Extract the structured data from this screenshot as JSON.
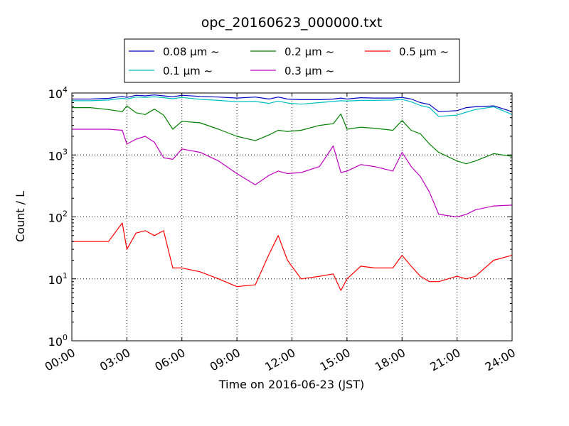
{
  "chart_data": {
    "type": "line",
    "title": "opc_20160623_000000.txt",
    "xlabel": "Time on 2016-06-23 (JST)",
    "ylabel": "Count / L",
    "yscale": "log",
    "xlim": [
      "00:00",
      "24:00"
    ],
    "ylim": [
      1,
      10000
    ],
    "grid": true,
    "legend_position": "top",
    "x_ticks": [
      "00:00",
      "03:00",
      "06:00",
      "09:00",
      "12:00",
      "15:00",
      "18:00",
      "21:00",
      "24:00"
    ],
    "y_ticks": [
      {
        "value": 1,
        "base": "10",
        "exp": "0"
      },
      {
        "value": 10,
        "base": "10",
        "exp": "1"
      },
      {
        "value": 100,
        "base": "10",
        "exp": "2"
      },
      {
        "value": 1000,
        "base": "10",
        "exp": "3"
      },
      {
        "value": 10000,
        "base": "10",
        "exp": "4"
      }
    ],
    "x": [
      "00:00",
      "01:00",
      "02:00",
      "02:45",
      "03:00",
      "03:30",
      "04:00",
      "04:30",
      "05:00",
      "05:30",
      "06:00",
      "07:00",
      "08:00",
      "09:00",
      "10:00",
      "10:45",
      "11:15",
      "11:45",
      "12:30",
      "13:30",
      "14:15",
      "14:40",
      "15:00",
      "15:45",
      "16:30",
      "17:30",
      "18:00",
      "18:30",
      "19:00",
      "19:30",
      "20:00",
      "21:00",
      "21:30",
      "22:00",
      "23:00",
      "24:00"
    ],
    "series": [
      {
        "name": "0.08 µm ~",
        "color": "#0000bf",
        "values": [
          8000,
          8000,
          8200,
          8800,
          8500,
          9200,
          9000,
          9300,
          9000,
          8700,
          9200,
          8800,
          8600,
          8300,
          8600,
          8000,
          8600,
          8000,
          7800,
          7800,
          8000,
          8300,
          8000,
          8400,
          8300,
          8300,
          8500,
          8000,
          7000,
          6500,
          5000,
          5200,
          5800,
          6000,
          6200,
          5000
        ]
      },
      {
        "name": "0.1 µm ~",
        "color": "#00bfbf",
        "values": [
          7500,
          7500,
          7700,
          8200,
          8000,
          8600,
          8500,
          8700,
          8400,
          8100,
          8500,
          7900,
          7600,
          7200,
          7300,
          6800,
          7400,
          6900,
          6600,
          7000,
          7300,
          7500,
          7400,
          7600,
          7600,
          7700,
          7900,
          7200,
          6300,
          5800,
          4200,
          4400,
          4900,
          5400,
          6000,
          4500
        ]
      },
      {
        "name": "0.2 µm ~",
        "color": "#008000",
        "values": [
          5800,
          5800,
          5400,
          5000,
          6200,
          4800,
          4500,
          5500,
          4400,
          2600,
          3500,
          3300,
          2600,
          2000,
          1700,
          2100,
          2500,
          2400,
          2500,
          3000,
          3200,
          4600,
          2600,
          2800,
          2700,
          2500,
          3600,
          2500,
          2200,
          1500,
          1100,
          800,
          720,
          800,
          1050,
          950
        ]
      },
      {
        "name": "0.3 µm ~",
        "color": "#bf00bf",
        "values": [
          2600,
          2600,
          2600,
          2500,
          1500,
          1800,
          2000,
          1600,
          900,
          850,
          1250,
          1100,
          800,
          500,
          330,
          470,
          550,
          500,
          520,
          650,
          1400,
          520,
          550,
          700,
          650,
          550,
          1100,
          650,
          450,
          250,
          110,
          100,
          110,
          130,
          150,
          155
        ]
      },
      {
        "name": "0.5 µm ~",
        "color": "#ff0000",
        "values": [
          40,
          40,
          40,
          80,
          30,
          55,
          60,
          50,
          60,
          15,
          15,
          13,
          10,
          7.5,
          8,
          25,
          50,
          20,
          10,
          11,
          12,
          6.5,
          10,
          16,
          15,
          15,
          24,
          16,
          11,
          9,
          9,
          11,
          10,
          11,
          20,
          24
        ]
      }
    ]
  }
}
